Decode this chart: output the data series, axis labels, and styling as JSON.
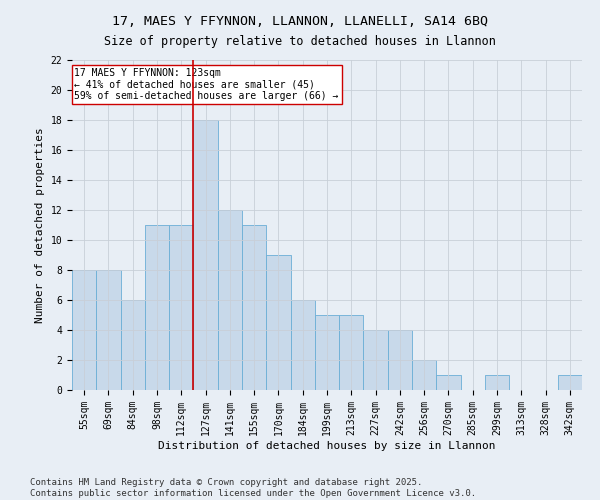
{
  "title1": "17, MAES Y FFYNNON, LLANNON, LLANELLI, SA14 6BQ",
  "title2": "Size of property relative to detached houses in Llannon",
  "xlabel": "Distribution of detached houses by size in Llannon",
  "ylabel": "Number of detached properties",
  "categories": [
    "55sqm",
    "69sqm",
    "84sqm",
    "98sqm",
    "112sqm",
    "127sqm",
    "141sqm",
    "155sqm",
    "170sqm",
    "184sqm",
    "199sqm",
    "213sqm",
    "227sqm",
    "242sqm",
    "256sqm",
    "270sqm",
    "285sqm",
    "299sqm",
    "313sqm",
    "328sqm",
    "342sqm"
  ],
  "values": [
    8,
    8,
    6,
    11,
    11,
    18,
    12,
    11,
    9,
    6,
    5,
    5,
    4,
    4,
    2,
    1,
    0,
    1,
    0,
    0,
    1
  ],
  "bar_color": "#c8d9ea",
  "bar_edge_color": "#6baed6",
  "property_line_bin": 5,
  "annotation_line1": "17 MAES Y FFYNNON: 123sqm",
  "annotation_line2": "← 41% of detached houses are smaller (45)",
  "annotation_line3": "59% of semi-detached houses are larger (66) →",
  "annotation_box_color": "#ffffff",
  "annotation_box_edge": "#cc0000",
  "red_line_color": "#cc0000",
  "ylim": [
    0,
    22
  ],
  "yticks": [
    0,
    2,
    4,
    6,
    8,
    10,
    12,
    14,
    16,
    18,
    20,
    22
  ],
  "grid_color": "#c8cfd8",
  "bg_color": "#e8eef5",
  "footer_line1": "Contains HM Land Registry data © Crown copyright and database right 2025.",
  "footer_line2": "Contains public sector information licensed under the Open Government Licence v3.0.",
  "title1_fontsize": 9.5,
  "title2_fontsize": 8.5,
  "axis_label_fontsize": 8,
  "tick_fontsize": 7,
  "annotation_fontsize": 7,
  "footer_fontsize": 6.5
}
